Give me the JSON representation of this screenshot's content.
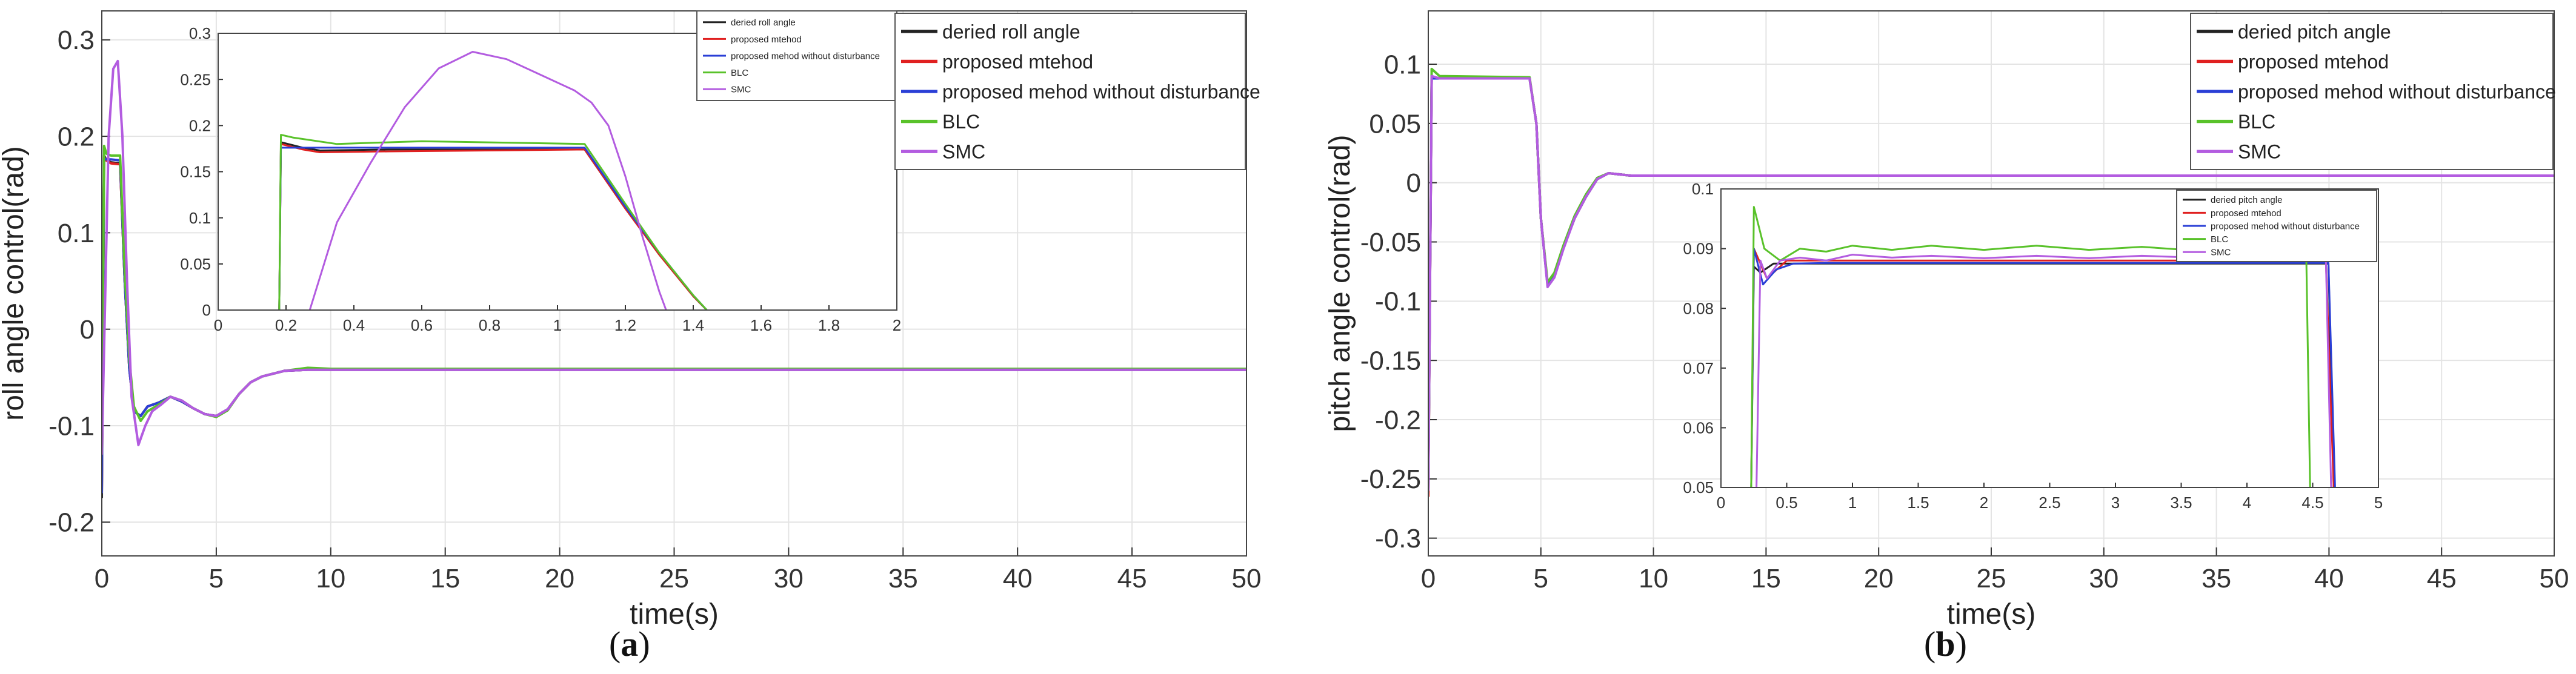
{
  "figure": {
    "label_a": "a",
    "label_b": "b"
  },
  "chart_data": [
    {
      "id": "a",
      "type": "line",
      "xlabel": "time(s)",
      "ylabel": "roll angle control(rad)",
      "xlim": [
        0,
        50
      ],
      "ylim": [
        -0.235,
        0.33
      ],
      "xticks": [
        0,
        5,
        10,
        15,
        20,
        25,
        30,
        35,
        40,
        45,
        50
      ],
      "yticks": [
        -0.2,
        -0.1,
        0,
        0.1,
        0.2,
        0.3
      ],
      "ytick_labels": [
        "-0.2",
        "-0.1",
        "0",
        "0.1",
        "0.2",
        "0.3"
      ],
      "grid": true,
      "legend_position": "top-right",
      "series": [
        {
          "name": "deried roll angle",
          "color": "#222222",
          "x": [
            0,
            0.1,
            0.2,
            0.4,
            0.8,
            1.0,
            1.2,
            1.4,
            1.7,
            2.0,
            2.5,
            3.0,
            3.5,
            4.0,
            4.5,
            5.0,
            5.5,
            6.0,
            6.5,
            7.0,
            7.5,
            8.0,
            9.0,
            10.0,
            50.0
          ],
          "y": [
            -0.175,
            0.18,
            0.175,
            0.173,
            0.172,
            0.05,
            -0.04,
            -0.085,
            -0.09,
            -0.08,
            -0.076,
            -0.07,
            -0.075,
            -0.082,
            -0.088,
            -0.09,
            -0.083,
            -0.067,
            -0.055,
            -0.049,
            -0.046,
            -0.043,
            -0.042,
            -0.042,
            -0.042
          ]
        },
        {
          "name": "proposed mtehod",
          "color": "#e02020",
          "x": [
            0,
            0.1,
            0.2,
            0.4,
            0.8,
            1.0,
            1.2,
            1.4,
            1.7,
            2.0,
            2.5,
            3.0,
            3.5,
            4.0,
            4.5,
            5.0,
            5.5,
            6.0,
            6.5,
            7.0,
            7.5,
            8.0,
            9.0,
            10.0,
            50.0
          ],
          "y": [
            -0.17,
            0.178,
            0.175,
            0.172,
            0.171,
            0.05,
            -0.04,
            -0.085,
            -0.09,
            -0.08,
            -0.076,
            -0.07,
            -0.075,
            -0.082,
            -0.088,
            -0.09,
            -0.083,
            -0.067,
            -0.055,
            -0.049,
            -0.046,
            -0.043,
            -0.042,
            -0.042,
            -0.042
          ]
        },
        {
          "name": "proposed mehod without disturbance",
          "color": "#2a3fd6",
          "x": [
            0,
            0.1,
            0.2,
            0.4,
            0.8,
            1.0,
            1.2,
            1.4,
            1.7,
            2.0,
            2.5,
            3.0,
            3.5,
            4.0,
            4.5,
            5.0,
            5.5,
            6.0,
            6.5,
            7.0,
            7.5,
            8.0,
            9.0,
            10.0,
            50.0
          ],
          "y": [
            -0.17,
            0.177,
            0.176,
            0.176,
            0.175,
            0.05,
            -0.04,
            -0.085,
            -0.09,
            -0.08,
            -0.076,
            -0.07,
            -0.075,
            -0.082,
            -0.088,
            -0.09,
            -0.083,
            -0.067,
            -0.055,
            -0.049,
            -0.046,
            -0.043,
            -0.042,
            -0.042,
            -0.042
          ]
        },
        {
          "name": "BLC",
          "color": "#59c22a",
          "x": [
            0,
            0.1,
            0.2,
            0.4,
            0.8,
            1.0,
            1.2,
            1.4,
            1.7,
            2.0,
            2.5,
            3.0,
            3.5,
            4.0,
            4.5,
            5.0,
            5.5,
            6.0,
            6.5,
            7.0,
            7.5,
            8.0,
            9.0,
            10.0,
            50.0
          ],
          "y": [
            -0.13,
            0.19,
            0.182,
            0.18,
            0.18,
            0.06,
            -0.03,
            -0.08,
            -0.095,
            -0.085,
            -0.078,
            -0.07,
            -0.074,
            -0.082,
            -0.088,
            -0.091,
            -0.084,
            -0.067,
            -0.055,
            -0.049,
            -0.046,
            -0.043,
            -0.04,
            -0.041,
            -0.041
          ]
        },
        {
          "name": "SMC",
          "color": "#b35ce0",
          "x": [
            0,
            0.3,
            0.5,
            0.7,
            0.9,
            1.1,
            1.3,
            1.6,
            1.9,
            2.2,
            2.6,
            3.0,
            3.5,
            4.0,
            4.5,
            5.0,
            5.5,
            6.0,
            6.5,
            7.0,
            7.5,
            8.0,
            9.0,
            10.0,
            50.0
          ],
          "y": [
            -0.13,
            0.2,
            0.27,
            0.278,
            0.2,
            0.05,
            -0.07,
            -0.12,
            -0.1,
            -0.085,
            -0.078,
            -0.07,
            -0.074,
            -0.082,
            -0.088,
            -0.09,
            -0.083,
            -0.067,
            -0.055,
            -0.049,
            -0.046,
            -0.043,
            -0.042,
            -0.042,
            -0.042
          ]
        }
      ],
      "inset": {
        "xlim": [
          0,
          2
        ],
        "ylim": [
          0,
          0.3
        ],
        "xticks": [
          0,
          0.2,
          0.4,
          0.6,
          0.8,
          1,
          1.2,
          1.4,
          1.6,
          1.8,
          2
        ],
        "yticks": [
          0,
          0.05,
          0.1,
          0.15,
          0.2,
          0.25,
          0.3
        ],
        "legend_position": "top-right",
        "series": [
          {
            "name": "deried roll angle",
            "color": "#222222",
            "x": [
              0.18,
              0.185,
              0.25,
              0.3,
              0.5,
              1.08,
              1.2,
              1.3,
              1.4,
              1.44
            ],
            "y": [
              0,
              0.182,
              0.176,
              0.173,
              0.174,
              0.174,
              0.11,
              0.06,
              0.015,
              0
            ]
          },
          {
            "name": "proposed mtehod",
            "color": "#e02020",
            "x": [
              0.18,
              0.185,
              0.25,
              0.3,
              0.5,
              1.08,
              1.2,
              1.3,
              1.4,
              1.44
            ],
            "y": [
              0,
              0.18,
              0.174,
              0.171,
              0.172,
              0.174,
              0.11,
              0.06,
              0.015,
              0
            ]
          },
          {
            "name": "proposed mehod without disturbance",
            "color": "#2a3fd6",
            "x": [
              0.18,
              0.185,
              0.3,
              0.6,
              1.08,
              1.2,
              1.3,
              1.4,
              1.44
            ],
            "y": [
              0,
              0.176,
              0.176,
              0.176,
              0.176,
              0.112,
              0.062,
              0.016,
              0
            ]
          },
          {
            "name": "BLC",
            "color": "#59c22a",
            "x": [
              0.18,
              0.185,
              0.22,
              0.35,
              0.6,
              1.08,
              1.2,
              1.3,
              1.4,
              1.44
            ],
            "y": [
              0,
              0.19,
              0.187,
              0.18,
              0.183,
              0.18,
              0.115,
              0.062,
              0.016,
              0
            ]
          },
          {
            "name": "SMC",
            "color": "#b35ce0",
            "x": [
              0.27,
              0.35,
              0.45,
              0.55,
              0.65,
              0.75,
              0.85,
              0.95,
              1.05,
              1.1,
              1.15,
              1.2,
              1.25,
              1.3,
              1.32
            ],
            "y": [
              0,
              0.095,
              0.16,
              0.22,
              0.262,
              0.28,
              0.272,
              0.255,
              0.238,
              0.225,
              0.2,
              0.145,
              0.08,
              0.02,
              0
            ]
          }
        ]
      }
    },
    {
      "id": "b",
      "type": "line",
      "xlabel": "time(s)",
      "ylabel": "pitch angle control(rad)",
      "xlim": [
        0,
        50
      ],
      "ylim": [
        -0.315,
        0.145
      ],
      "xticks": [
        0,
        5,
        10,
        15,
        20,
        25,
        30,
        35,
        40,
        45,
        50
      ],
      "yticks": [
        -0.3,
        -0.25,
        -0.2,
        -0.15,
        -0.1,
        -0.05,
        0,
        0.05,
        0.1
      ],
      "ytick_labels": [
        "-0.3",
        "-0.25",
        "-0.2",
        "-0.15",
        "-0.1",
        "-0.05",
        "0",
        "0.05",
        "0.1"
      ],
      "grid": true,
      "legend_position": "top-right",
      "series": [
        {
          "name": "deried pitch angle",
          "color": "#222222",
          "x": [
            0,
            0.15,
            0.5,
            4.5,
            4.8,
            5.0,
            5.3,
            5.6,
            6.0,
            6.5,
            7.0,
            7.5,
            8.0,
            9.0,
            50.0
          ],
          "y": [
            -0.265,
            0.088,
            0.088,
            0.088,
            0.05,
            -0.03,
            -0.086,
            -0.078,
            -0.055,
            -0.03,
            -0.012,
            0.003,
            0.008,
            0.006,
            0.006
          ]
        },
        {
          "name": "proposed mtehod",
          "color": "#e02020",
          "x": [
            0,
            0.15,
            0.5,
            4.5,
            4.8,
            5.0,
            5.3,
            5.6,
            6.0,
            6.5,
            7.0,
            7.5,
            8.0,
            9.0,
            50.0
          ],
          "y": [
            -0.265,
            0.089,
            0.088,
            0.088,
            0.05,
            -0.03,
            -0.086,
            -0.078,
            -0.055,
            -0.03,
            -0.012,
            0.003,
            0.008,
            0.006,
            0.006
          ]
        },
        {
          "name": "proposed mehod without disturbance",
          "color": "#2a3fd6",
          "x": [
            0,
            0.15,
            0.5,
            4.5,
            4.8,
            5.0,
            5.3,
            5.6,
            6.0,
            6.5,
            7.0,
            7.5,
            8.0,
            9.0,
            50.0
          ],
          "y": [
            -0.26,
            0.088,
            0.088,
            0.088,
            0.05,
            -0.03,
            -0.087,
            -0.079,
            -0.055,
            -0.03,
            -0.012,
            0.003,
            0.008,
            0.006,
            0.006
          ]
        },
        {
          "name": "BLC",
          "color": "#59c22a",
          "x": [
            0,
            0.15,
            0.5,
            4.5,
            4.8,
            5.0,
            5.3,
            5.6,
            6.0,
            6.5,
            7.0,
            7.5,
            8.0,
            9.0,
            50.0
          ],
          "y": [
            -0.25,
            0.096,
            0.09,
            0.089,
            0.05,
            -0.03,
            -0.084,
            -0.076,
            -0.053,
            -0.028,
            -0.01,
            0.004,
            0.008,
            0.006,
            0.006
          ]
        },
        {
          "name": "SMC",
          "color": "#b35ce0",
          "x": [
            0,
            0.15,
            0.5,
            4.5,
            4.8,
            5.0,
            5.3,
            5.6,
            6.0,
            6.5,
            7.0,
            7.5,
            8.0,
            9.0,
            50.0
          ],
          "y": [
            -0.26,
            0.09,
            0.088,
            0.088,
            0.05,
            -0.03,
            -0.088,
            -0.08,
            -0.056,
            -0.03,
            -0.012,
            0.003,
            0.008,
            0.006,
            0.006
          ]
        }
      ],
      "inset": {
        "xlim": [
          0,
          5
        ],
        "ylim": [
          0.05,
          0.1
        ],
        "xticks": [
          0,
          0.5,
          1,
          1.5,
          2,
          2.5,
          3,
          3.5,
          4,
          4.5,
          5
        ],
        "yticks": [
          0.05,
          0.06,
          0.07,
          0.08,
          0.09,
          0.1
        ],
        "legend_position": "top-right",
        "series": [
          {
            "name": "deried pitch angle",
            "color": "#222222",
            "x": [
              0.23,
              0.25,
              0.3,
              0.4,
              0.5,
              0.7,
              4.6,
              4.62,
              4.66
            ],
            "y": [
              0.05,
              0.087,
              0.086,
              0.0875,
              0.0875,
              0.0875,
              0.0875,
              0.0875,
              0.05
            ]
          },
          {
            "name": "proposed mtehod",
            "color": "#e02020",
            "x": [
              0.23,
              0.25,
              0.35,
              0.5,
              0.7,
              1.0,
              1.5,
              2.0,
              2.5,
              3.0,
              3.5,
              4.0,
              4.4,
              4.6,
              4.66
            ],
            "y": [
              0.05,
              0.09,
              0.085,
              0.088,
              0.088,
              0.088,
              0.088,
              0.088,
              0.088,
              0.088,
              0.088,
              0.088,
              0.088,
              0.088,
              0.05
            ]
          },
          {
            "name": "proposed mehod without disturbance",
            "color": "#2a3fd6",
            "x": [
              0.23,
              0.25,
              0.32,
              0.42,
              0.55,
              0.8,
              4.6,
              4.62,
              4.67
            ],
            "y": [
              0.05,
              0.09,
              0.084,
              0.0865,
              0.0875,
              0.0876,
              0.0876,
              0.0876,
              0.05
            ]
          },
          {
            "name": "BLC",
            "color": "#59c22a",
            "x": [
              0.23,
              0.25,
              0.33,
              0.45,
              0.6,
              0.8,
              1.0,
              1.3,
              1.6,
              2.0,
              2.4,
              2.8,
              3.2,
              3.6,
              4.0,
              4.3,
              4.45,
              4.48
            ],
            "y": [
              0.05,
              0.097,
              0.09,
              0.088,
              0.09,
              0.0895,
              0.0905,
              0.0898,
              0.0905,
              0.0898,
              0.0905,
              0.0898,
              0.0903,
              0.0897,
              0.0903,
              0.09,
              0.09,
              0.05
            ]
          },
          {
            "name": "SMC",
            "color": "#b35ce0",
            "x": [
              0.27,
              0.3,
              0.35,
              0.45,
              0.6,
              0.8,
              1.0,
              1.3,
              1.6,
              2.0,
              2.4,
              2.8,
              3.2,
              3.6,
              4.0,
              4.4,
              4.6,
              4.64
            ],
            "y": [
              0.05,
              0.088,
              0.085,
              0.088,
              0.0885,
              0.088,
              0.089,
              0.0885,
              0.0888,
              0.0884,
              0.0888,
              0.0884,
              0.0888,
              0.0885,
              0.0887,
              0.0885,
              0.0885,
              0.05
            ]
          }
        ]
      }
    }
  ]
}
